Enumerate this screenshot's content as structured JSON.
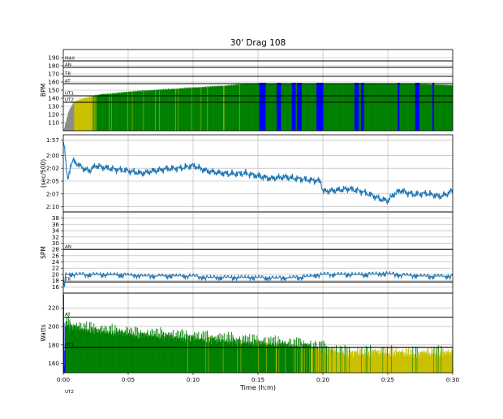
{
  "chart_data": {
    "type": "area",
    "title": "30' Drag 108",
    "xlabel": "Time (h:m)",
    "x_range_seconds": [
      0,
      1800
    ],
    "x_ticks": [
      "0:00",
      "0:05",
      "0:10",
      "0:15",
      "0:20",
      "0:25",
      "0:30"
    ],
    "grid": true,
    "panels": [
      {
        "name": "hr",
        "ylabel": "BPM",
        "ylim": [
          100,
          200
        ],
        "ticks": [
          110,
          120,
          130,
          140,
          150,
          160,
          170,
          180,
          190
        ],
        "zones": [
          {
            "label": "MAX",
            "value": 186
          },
          {
            "label": "AN",
            "value": 178
          },
          {
            "label": "TR",
            "value": 167
          },
          {
            "label": "AT",
            "value": 158
          },
          {
            "label": "UT1",
            "value": 143
          },
          {
            "label": "UT2",
            "value": 135
          }
        ],
        "zone_colors": {
          "UT2": "#8c8c8c",
          "UT1": "#c8c000",
          "AT": "#008000",
          "TR": "#0000ff"
        },
        "series_points": [
          [
            0,
            100
          ],
          [
            12,
            112
          ],
          [
            24,
            124
          ],
          [
            36,
            130
          ],
          [
            48,
            135
          ],
          [
            60,
            137
          ],
          [
            96,
            140
          ],
          [
            144,
            143
          ],
          [
            180,
            145
          ],
          [
            240,
            146
          ],
          [
            300,
            148
          ],
          [
            420,
            150
          ],
          [
            540,
            152
          ],
          [
            660,
            154
          ],
          [
            780,
            156
          ],
          [
            840,
            158
          ],
          [
            900,
            158
          ],
          [
            1200,
            158
          ],
          [
            1500,
            158
          ],
          [
            1680,
            157
          ],
          [
            1800,
            156
          ]
        ],
        "tr_spikes": [
          [
            905,
            935
          ],
          [
            985,
            1005
          ],
          [
            1055,
            1072
          ],
          [
            1080,
            1100
          ],
          [
            1170,
            1200
          ],
          [
            1345,
            1365
          ],
          [
            1375,
            1388
          ],
          [
            1545,
            1552
          ],
          [
            1625,
            1645
          ],
          [
            1705,
            1712
          ]
        ]
      },
      {
        "name": "pace",
        "ylabel": "(sec/500)",
        "ylim_seconds": [
          131,
          116
        ],
        "ticks": [
          "1:57",
          "2:00",
          "2:02",
          "2:05",
          "2:07",
          "2:10"
        ],
        "tick_values": [
          117,
          120,
          122.5,
          125,
          127.5,
          130
        ],
        "series_points": [
          [
            0,
            117
          ],
          [
            8,
            119
          ],
          [
            14,
            123
          ],
          [
            22,
            125
          ],
          [
            32,
            122
          ],
          [
            45,
            121
          ],
          [
            60,
            121.5
          ],
          [
            90,
            122.5
          ],
          [
            120,
            123
          ],
          [
            150,
            122
          ],
          [
            180,
            122.3
          ],
          [
            240,
            122.7
          ],
          [
            300,
            123
          ],
          [
            360,
            123.5
          ],
          [
            420,
            123
          ],
          [
            480,
            122.6
          ],
          [
            540,
            122.5
          ],
          [
            600,
            122
          ],
          [
            660,
            123
          ],
          [
            720,
            123.4
          ],
          [
            780,
            123.6
          ],
          [
            840,
            123.5
          ],
          [
            900,
            124
          ],
          [
            960,
            124.5
          ],
          [
            1020,
            124.2
          ],
          [
            1080,
            124.5
          ],
          [
            1140,
            124.8
          ],
          [
            1190,
            125
          ],
          [
            1200,
            127
          ],
          [
            1260,
            126.8
          ],
          [
            1320,
            126.5
          ],
          [
            1380,
            127
          ],
          [
            1440,
            128
          ],
          [
            1470,
            128.6
          ],
          [
            1500,
            128.8
          ],
          [
            1530,
            127.5
          ],
          [
            1560,
            126.8
          ],
          [
            1590,
            127.3
          ],
          [
            1620,
            127.6
          ],
          [
            1680,
            127.4
          ],
          [
            1740,
            128
          ],
          [
            1770,
            127.6
          ],
          [
            1800,
            126.8
          ]
        ]
      },
      {
        "name": "spm",
        "ylabel": "SPM",
        "ylim": [
          14,
          40
        ],
        "ticks": [
          16,
          18,
          20,
          22,
          24,
          26,
          28,
          30,
          32,
          34,
          36,
          38
        ],
        "zones": [
          {
            "label": "AN",
            "value": 28
          },
          {
            "label": "TR",
            "value": 17.6
          }
        ],
        "series_points": [
          [
            0,
            19.5
          ],
          [
            5,
            15
          ],
          [
            10,
            20
          ],
          [
            300,
            19.8
          ],
          [
            360,
            19.5
          ],
          [
            600,
            19.5
          ],
          [
            660,
            19
          ],
          [
            900,
            19
          ],
          [
            960,
            18.8
          ],
          [
            1080,
            19
          ],
          [
            1140,
            19.4
          ],
          [
            1200,
            20
          ],
          [
            1380,
            19.9
          ],
          [
            1440,
            20.1
          ],
          [
            1500,
            20.3
          ],
          [
            1560,
            19.8
          ],
          [
            1680,
            19.4
          ],
          [
            1800,
            19.4
          ]
        ]
      },
      {
        "name": "power",
        "ylabel": "Watts",
        "ylim": [
          150,
          236
        ],
        "ticks": [
          160,
          180,
          200,
          220
        ],
        "zones": [
          {
            "label": "AT",
            "value": 210
          },
          {
            "label": "UT1",
            "value": 177.5
          }
        ],
        "zone_label_below_axis": "UT2",
        "zone_colors": {
          "UT1": "#c8c000",
          "AT": "#008000",
          "TR": "#0000ff"
        },
        "series_points": [
          [
            0,
            233
          ],
          [
            4,
            160
          ],
          [
            10,
            205
          ],
          [
            30,
            200
          ],
          [
            60,
            198
          ],
          [
            120,
            196
          ],
          [
            180,
            194
          ],
          [
            240,
            193
          ],
          [
            300,
            192
          ],
          [
            360,
            190
          ],
          [
            420,
            190
          ],
          [
            480,
            189
          ],
          [
            540,
            188
          ],
          [
            600,
            187
          ],
          [
            660,
            186
          ],
          [
            720,
            185
          ],
          [
            780,
            184
          ],
          [
            840,
            183
          ],
          [
            900,
            182
          ],
          [
            960,
            181
          ],
          [
            1020,
            180
          ],
          [
            1080,
            179
          ],
          [
            1140,
            178
          ],
          [
            1200,
            175
          ],
          [
            1260,
            172
          ],
          [
            1320,
            170
          ],
          [
            1380,
            170
          ],
          [
            1440,
            171
          ],
          [
            1500,
            170
          ],
          [
            1560,
            170
          ],
          [
            1620,
            169
          ],
          [
            1680,
            170
          ],
          [
            1740,
            170
          ],
          [
            1800,
            171
          ]
        ]
      }
    ]
  },
  "colors": {
    "line": "#1f77b4",
    "grid": "#b0b0b0",
    "zone_line": "#000000"
  }
}
